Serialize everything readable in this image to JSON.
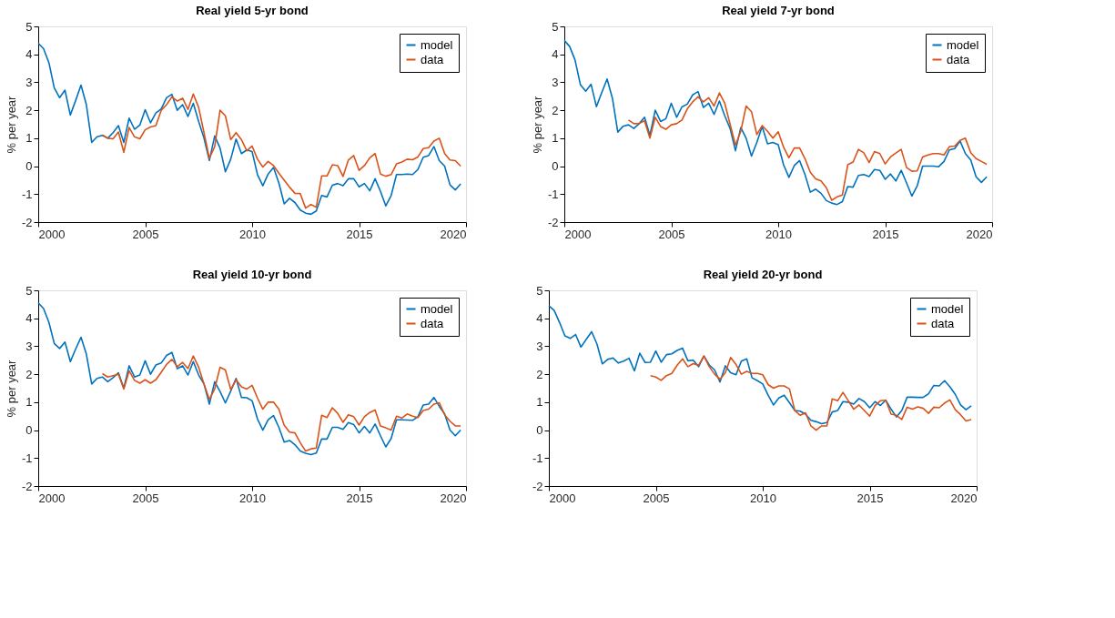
{
  "chart_data": [
    {
      "type": "line",
      "title": "Real yield 5-yr bond",
      "ylabel": "% per year",
      "xlim": [
        2000,
        2020
      ],
      "xticks": [
        2000,
        2005,
        2010,
        2015,
        2020
      ],
      "ylim": [
        -2,
        5
      ],
      "yticks": [
        -2,
        -1,
        0,
        1,
        2,
        3,
        4,
        5
      ],
      "grid": false,
      "legend": "top right",
      "x": [
        2000,
        2000.25,
        2000.5,
        2000.75,
        2001,
        2001.25,
        2001.5,
        2001.75,
        2002,
        2002.25,
        2002.5,
        2002.75,
        2003,
        2003.25,
        2003.5,
        2003.75,
        2004,
        2004.25,
        2004.5,
        2004.75,
        2005,
        2005.25,
        2005.5,
        2005.75,
        2006,
        2006.25,
        2006.5,
        2006.75,
        2007,
        2007.25,
        2007.5,
        2007.75,
        2008,
        2008.25,
        2008.5,
        2008.75,
        2009,
        2009.25,
        2009.5,
        2009.75,
        2010,
        2010.25,
        2010.5,
        2010.75,
        2011,
        2011.25,
        2011.5,
        2011.75,
        2012,
        2012.25,
        2012.5,
        2012.75,
        2013,
        2013.25,
        2013.5,
        2013.75,
        2014,
        2014.25,
        2014.5,
        2014.75,
        2015,
        2015.25,
        2015.5,
        2015.75,
        2016,
        2016.25,
        2016.5,
        2016.75,
        2017,
        2017.25,
        2017.5,
        2017.75,
        2018,
        2018.25,
        2018.5,
        2018.75,
        2019,
        2019.25,
        2019.5,
        2019.75
      ],
      "series": [
        {
          "name": "model",
          "color": "#0072bd",
          "values": [
            4.4,
            4.2,
            3.7,
            2.8,
            2.45,
            2.72,
            1.83,
            2.35,
            2.9,
            2.2,
            0.85,
            1.05,
            1.1,
            1.0,
            1.2,
            1.45,
            0.85,
            1.72,
            1.32,
            1.47,
            2.02,
            1.55,
            1.9,
            2.05,
            2.45,
            2.57,
            2.0,
            2.2,
            1.78,
            2.25,
            1.6,
            1.0,
            0.2,
            1.08,
            0.65,
            -0.2,
            0.25,
            0.97,
            0.45,
            0.58,
            0.52,
            -0.3,
            -0.7,
            -0.28,
            -0.05,
            -0.6,
            -1.35,
            -1.15,
            -1.3,
            -1.57,
            -1.68,
            -1.72,
            -1.6,
            -1.05,
            -1.1,
            -0.68,
            -0.62,
            -0.7,
            -0.45,
            -0.45,
            -0.74,
            -0.62,
            -0.88,
            -0.45,
            -0.9,
            -1.42,
            -1.05,
            -0.3,
            -0.3,
            -0.28,
            -0.3,
            -0.12,
            0.32,
            0.38,
            0.7,
            0.2,
            0.0,
            -0.67,
            -0.85,
            -0.63
          ]
        },
        {
          "name": "data",
          "color": "#d95319",
          "x": [
            2003,
            2003.25,
            2003.5,
            2003.75,
            2004,
            2004.25,
            2004.5,
            2004.75,
            2005,
            2005.25,
            2005.5,
            2005.75,
            2006,
            2006.25,
            2006.5,
            2006.75,
            2007,
            2007.25,
            2007.5,
            2007.75,
            2008,
            2008.25,
            2008.5,
            2008.75,
            2009,
            2009.25,
            2009.5,
            2009.75,
            2010,
            2010.25,
            2010.5,
            2010.75,
            2011,
            2011.25,
            2011.5,
            2011.75,
            2012,
            2012.25,
            2012.5,
            2012.75,
            2013,
            2013.25,
            2013.5,
            2013.75,
            2014,
            2014.25,
            2014.5,
            2014.75,
            2015,
            2015.25,
            2015.5,
            2015.75,
            2016,
            2016.25,
            2016.5,
            2016.75,
            2017,
            2017.25,
            2017.5,
            2017.75,
            2018,
            2018.25,
            2018.5,
            2018.75,
            2019,
            2019.25,
            2019.5,
            2019.75
          ],
          "values": [
            1.12,
            1.0,
            0.98,
            1.22,
            0.5,
            1.38,
            1.05,
            0.98,
            1.3,
            1.4,
            1.45,
            2.0,
            2.2,
            2.48,
            2.33,
            2.43,
            2.03,
            2.58,
            2.1,
            1.2,
            0.28,
            0.7,
            2.0,
            1.8,
            0.95,
            1.2,
            0.95,
            0.55,
            0.72,
            0.25,
            -0.03,
            0.17,
            0.02,
            -0.25,
            -0.5,
            -0.75,
            -0.97,
            -0.98,
            -1.5,
            -1.37,
            -1.47,
            -0.35,
            -0.35,
            0.05,
            0.02,
            -0.37,
            0.22,
            0.38,
            -0.15,
            0.02,
            0.3,
            0.45,
            -0.28,
            -0.36,
            -0.3,
            0.08,
            0.15,
            0.25,
            0.23,
            0.33,
            0.63,
            0.66,
            0.9,
            1.0,
            0.45,
            0.22,
            0.2,
            0.0
          ]
        }
      ]
    },
    {
      "type": "line",
      "title": "Real yield 7-yr bond",
      "ylabel": "% per year",
      "xlim": [
        2000,
        2020
      ],
      "xticks": [
        2000,
        2005,
        2010,
        2015,
        2020
      ],
      "ylim": [
        -2,
        5
      ],
      "yticks": [
        -2,
        -1,
        0,
        1,
        2,
        3,
        4,
        5
      ],
      "grid": false,
      "legend": "top right",
      "x": [
        2000,
        2000.25,
        2000.5,
        2000.75,
        2001,
        2001.25,
        2001.5,
        2001.75,
        2002,
        2002.25,
        2002.5,
        2002.75,
        2003,
        2003.25,
        2003.5,
        2003.75,
        2004,
        2004.25,
        2004.5,
        2004.75,
        2005,
        2005.25,
        2005.5,
        2005.75,
        2006,
        2006.25,
        2006.5,
        2006.75,
        2007,
        2007.25,
        2007.5,
        2007.75,
        2008,
        2008.25,
        2008.5,
        2008.75,
        2009,
        2009.25,
        2009.5,
        2009.75,
        2010,
        2010.25,
        2010.5,
        2010.75,
        2011,
        2011.25,
        2011.5,
        2011.75,
        2012,
        2012.25,
        2012.5,
        2012.75,
        2013,
        2013.25,
        2013.5,
        2013.75,
        2014,
        2014.25,
        2014.5,
        2014.75,
        2015,
        2015.25,
        2015.5,
        2015.75,
        2016,
        2016.25,
        2016.5,
        2016.75,
        2017,
        2017.25,
        2017.5,
        2017.75,
        2018,
        2018.25,
        2018.5,
        2018.75,
        2019,
        2019.25,
        2019.5,
        2019.75
      ],
      "series": [
        {
          "name": "model",
          "color": "#0072bd",
          "values": [
            4.5,
            4.28,
            3.8,
            2.92,
            2.68,
            2.93,
            2.13,
            2.63,
            3.12,
            2.42,
            1.22,
            1.43,
            1.48,
            1.35,
            1.52,
            1.75,
            1.1,
            2.0,
            1.6,
            1.7,
            2.25,
            1.75,
            2.12,
            2.22,
            2.55,
            2.67,
            2.1,
            2.25,
            1.85,
            2.33,
            1.8,
            1.35,
            0.55,
            1.38,
            1.0,
            0.36,
            0.85,
            1.42,
            0.8,
            0.85,
            0.77,
            0.05,
            -0.4,
            0.02,
            0.2,
            -0.3,
            -0.93,
            -0.82,
            -0.97,
            -1.23,
            -1.32,
            -1.37,
            -1.27,
            -0.73,
            -0.75,
            -0.33,
            -0.3,
            -0.37,
            -0.12,
            -0.15,
            -0.47,
            -0.28,
            -0.53,
            -0.15,
            -0.6,
            -1.07,
            -0.7,
            0.0,
            0.0,
            0.0,
            -0.02,
            0.17,
            0.58,
            0.63,
            0.9,
            0.45,
            0.22,
            -0.38,
            -0.58,
            -0.38
          ]
        },
        {
          "name": "data",
          "color": "#d95319",
          "x": [
            2003,
            2003.25,
            2003.5,
            2003.75,
            2004,
            2004.25,
            2004.5,
            2004.75,
            2005,
            2005.25,
            2005.5,
            2005.75,
            2006,
            2006.25,
            2006.5,
            2006.75,
            2007,
            2007.25,
            2007.5,
            2007.75,
            2008,
            2008.25,
            2008.5,
            2008.75,
            2009,
            2009.25,
            2009.5,
            2009.75,
            2010,
            2010.25,
            2010.5,
            2010.75,
            2011,
            2011.25,
            2011.5,
            2011.75,
            2012,
            2012.25,
            2012.5,
            2012.75,
            2013,
            2013.25,
            2013.5,
            2013.75,
            2014,
            2014.25,
            2014.5,
            2014.75,
            2015,
            2015.25,
            2015.5,
            2015.75,
            2016,
            2016.25,
            2016.5,
            2016.75,
            2017,
            2017.25,
            2017.5,
            2017.75,
            2018,
            2018.25,
            2018.5,
            2018.75,
            2019,
            2019.25,
            2019.5,
            2019.75
          ],
          "values": [
            1.65,
            1.52,
            1.53,
            1.62,
            1.0,
            1.75,
            1.42,
            1.32,
            1.48,
            1.52,
            1.65,
            2.05,
            2.3,
            2.48,
            2.3,
            2.45,
            2.15,
            2.62,
            2.25,
            1.5,
            0.75,
            1.25,
            2.15,
            1.95,
            1.13,
            1.45,
            1.25,
            1.0,
            1.23,
            0.68,
            0.3,
            0.65,
            0.65,
            0.27,
            -0.22,
            -0.45,
            -0.53,
            -0.77,
            -1.22,
            -1.1,
            -1.03,
            0.05,
            0.15,
            0.6,
            0.48,
            0.13,
            0.52,
            0.45,
            0.08,
            0.33,
            0.47,
            0.6,
            -0.05,
            -0.18,
            -0.17,
            0.33,
            0.4,
            0.45,
            0.45,
            0.4,
            0.7,
            0.72,
            0.92,
            1.0,
            0.48,
            0.27,
            0.17,
            0.07
          ]
        }
      ]
    },
    {
      "type": "line",
      "title": "Real yield 10-yr bond",
      "ylabel": "% per year",
      "xlim": [
        2000,
        2020
      ],
      "xticks": [
        2000,
        2005,
        2010,
        2015,
        2020
      ],
      "ylim": [
        -2,
        5
      ],
      "yticks": [
        -2,
        -1,
        0,
        1,
        2,
        3,
        4,
        5
      ],
      "grid": false,
      "legend": "top right",
      "x": [
        2000,
        2000.25,
        2000.5,
        2000.75,
        2001,
        2001.25,
        2001.5,
        2001.75,
        2002,
        2002.25,
        2002.5,
        2002.75,
        2003,
        2003.25,
        2003.5,
        2003.75,
        2004,
        2004.25,
        2004.5,
        2004.75,
        2005,
        2005.25,
        2005.5,
        2005.75,
        2006,
        2006.25,
        2006.5,
        2006.75,
        2007,
        2007.25,
        2007.5,
        2007.75,
        2008,
        2008.25,
        2008.5,
        2008.75,
        2009,
        2009.25,
        2009.5,
        2009.75,
        2010,
        2010.25,
        2010.5,
        2010.75,
        2011,
        2011.25,
        2011.5,
        2011.75,
        2012,
        2012.25,
        2012.5,
        2012.75,
        2013,
        2013.25,
        2013.5,
        2013.75,
        2014,
        2014.25,
        2014.5,
        2014.75,
        2015,
        2015.25,
        2015.5,
        2015.75,
        2016,
        2016.25,
        2016.5,
        2016.75,
        2017,
        2017.25,
        2017.5,
        2017.75,
        2018,
        2018.25,
        2018.5,
        2018.75,
        2019,
        2019.25,
        2019.5,
        2019.75
      ],
      "series": [
        {
          "name": "model",
          "color": "#0072bd",
          "values": [
            4.55,
            4.35,
            3.85,
            3.1,
            2.92,
            3.15,
            2.45,
            2.9,
            3.32,
            2.72,
            1.65,
            1.85,
            1.9,
            1.73,
            1.88,
            2.05,
            1.5,
            2.3,
            1.9,
            1.97,
            2.48,
            2.0,
            2.33,
            2.4,
            2.67,
            2.78,
            2.2,
            2.3,
            1.97,
            2.45,
            1.97,
            1.65,
            0.93,
            1.73,
            1.38,
            0.97,
            1.4,
            1.85,
            1.17,
            1.16,
            1.05,
            0.4,
            0.0,
            0.37,
            0.52,
            0.1,
            -0.43,
            -0.37,
            -0.52,
            -0.75,
            -0.83,
            -0.88,
            -0.82,
            -0.32,
            -0.32,
            0.1,
            0.1,
            0.03,
            0.27,
            0.2,
            -0.1,
            0.13,
            -0.1,
            0.22,
            -0.2,
            -0.6,
            -0.3,
            0.37,
            0.37,
            0.36,
            0.35,
            0.48,
            0.9,
            0.93,
            1.17,
            0.85,
            0.58,
            0.0,
            -0.2,
            0.0
          ]
        },
        {
          "name": "data",
          "color": "#d95319",
          "x": [
            2003,
            2003.25,
            2003.5,
            2003.75,
            2004,
            2004.25,
            2004.5,
            2004.75,
            2005,
            2005.25,
            2005.5,
            2005.75,
            2006,
            2006.25,
            2006.5,
            2006.75,
            2007,
            2007.25,
            2007.5,
            2007.75,
            2008,
            2008.25,
            2008.5,
            2008.75,
            2009,
            2009.25,
            2009.5,
            2009.75,
            2010,
            2010.25,
            2010.5,
            2010.75,
            2011,
            2011.25,
            2011.5,
            2011.75,
            2012,
            2012.25,
            2012.5,
            2012.75,
            2013,
            2013.25,
            2013.5,
            2013.75,
            2014,
            2014.25,
            2014.5,
            2014.75,
            2015,
            2015.25,
            2015.5,
            2015.75,
            2016,
            2016.25,
            2016.5,
            2016.75,
            2017,
            2017.25,
            2017.5,
            2017.75,
            2018,
            2018.25,
            2018.5,
            2018.75,
            2019,
            2019.25,
            2019.5,
            2019.75
          ],
          "values": [
            2.02,
            1.9,
            1.95,
            2.0,
            1.47,
            2.12,
            1.78,
            1.68,
            1.8,
            1.68,
            1.8,
            2.07,
            2.35,
            2.53,
            2.27,
            2.42,
            2.2,
            2.65,
            2.25,
            1.65,
            1.1,
            1.47,
            2.25,
            2.15,
            1.45,
            1.8,
            1.55,
            1.47,
            1.6,
            1.15,
            0.75,
            1.0,
            1.0,
            0.75,
            0.17,
            -0.07,
            -0.1,
            -0.45,
            -0.75,
            -0.67,
            -0.64,
            0.53,
            0.45,
            0.8,
            0.6,
            0.28,
            0.55,
            0.48,
            0.18,
            0.48,
            0.63,
            0.72,
            0.15,
            0.08,
            0.0,
            0.5,
            0.43,
            0.58,
            0.5,
            0.45,
            0.7,
            0.75,
            0.93,
            0.98,
            0.55,
            0.32,
            0.15,
            0.15
          ]
        }
      ]
    },
    {
      "type": "line",
      "title": "Real yield 20-yr bond",
      "xlim": [
        2000,
        2020
      ],
      "xticks": [
        2000,
        2005,
        2010,
        2015,
        2020
      ],
      "ylim": [
        -2,
        5
      ],
      "yticks": [
        -2,
        -1,
        0,
        1,
        2,
        3,
        4,
        5
      ],
      "grid": false,
      "legend": "top right",
      "x": [
        2000,
        2000.25,
        2000.5,
        2000.75,
        2001,
        2001.25,
        2001.5,
        2001.75,
        2002,
        2002.25,
        2002.5,
        2002.75,
        2003,
        2003.25,
        2003.5,
        2003.75,
        2004,
        2004.25,
        2004.5,
        2004.75,
        2005,
        2005.25,
        2005.5,
        2005.75,
        2006,
        2006.25,
        2006.5,
        2006.75,
        2007,
        2007.25,
        2007.5,
        2007.75,
        2008,
        2008.25,
        2008.5,
        2008.75,
        2009,
        2009.25,
        2009.5,
        2009.75,
        2010,
        2010.25,
        2010.5,
        2010.75,
        2011,
        2011.25,
        2011.5,
        2011.75,
        2012,
        2012.25,
        2012.5,
        2012.75,
        2013,
        2013.25,
        2013.5,
        2013.75,
        2014,
        2014.25,
        2014.5,
        2014.75,
        2015,
        2015.25,
        2015.5,
        2015.75,
        2016,
        2016.25,
        2016.5,
        2016.75,
        2017,
        2017.25,
        2017.5,
        2017.75,
        2018,
        2018.25,
        2018.5,
        2018.75,
        2019,
        2019.25,
        2019.5,
        2019.75
      ],
      "series": [
        {
          "name": "model",
          "color": "#0072bd",
          "values": [
            4.45,
            4.28,
            3.85,
            3.37,
            3.28,
            3.42,
            2.97,
            3.25,
            3.52,
            3.08,
            2.37,
            2.53,
            2.58,
            2.4,
            2.47,
            2.57,
            2.12,
            2.75,
            2.42,
            2.43,
            2.83,
            2.43,
            2.7,
            2.73,
            2.85,
            2.93,
            2.48,
            2.5,
            2.27,
            2.65,
            2.33,
            2.15,
            1.72,
            2.3,
            2.05,
            1.98,
            2.47,
            2.55,
            1.87,
            1.77,
            1.65,
            1.25,
            0.9,
            1.15,
            1.25,
            0.98,
            0.7,
            0.68,
            0.57,
            0.35,
            0.3,
            0.23,
            0.27,
            0.65,
            0.7,
            1.02,
            1.0,
            0.93,
            1.13,
            1.02,
            0.8,
            1.02,
            0.88,
            1.07,
            0.75,
            0.47,
            0.7,
            1.18,
            1.18,
            1.17,
            1.17,
            1.3,
            1.6,
            1.58,
            1.77,
            1.55,
            1.28,
            0.9,
            0.73,
            0.87
          ]
        },
        {
          "name": "data",
          "color": "#d95319",
          "x": [
            2004.75,
            2005,
            2005.25,
            2005.5,
            2005.75,
            2006,
            2006.25,
            2006.5,
            2006.75,
            2007,
            2007.25,
            2007.5,
            2007.75,
            2008,
            2008.25,
            2008.5,
            2008.75,
            2009,
            2009.25,
            2009.5,
            2009.75,
            2010,
            2010.25,
            2010.5,
            2010.75,
            2011,
            2011.25,
            2011.5,
            2011.75,
            2012,
            2012.25,
            2012.5,
            2012.75,
            2013,
            2013.25,
            2013.5,
            2013.75,
            2014,
            2014.25,
            2014.5,
            2014.75,
            2015,
            2015.25,
            2015.5,
            2015.75,
            2016,
            2016.25,
            2016.5,
            2016.75,
            2017,
            2017.25,
            2017.5,
            2017.75,
            2018,
            2018.25,
            2018.5,
            2018.75,
            2019,
            2019.25,
            2019.5,
            2019.75
          ],
          "values": [
            1.95,
            1.9,
            1.78,
            1.95,
            2.03,
            2.32,
            2.55,
            2.27,
            2.38,
            2.32,
            2.65,
            2.27,
            2.0,
            1.82,
            2.05,
            2.6,
            2.35,
            2.0,
            2.1,
            2.03,
            2.03,
            1.98,
            1.63,
            1.5,
            1.58,
            1.58,
            1.47,
            0.7,
            0.53,
            0.62,
            0.15,
            0.0,
            0.15,
            0.15,
            1.12,
            1.05,
            1.35,
            1.05,
            0.75,
            0.9,
            0.7,
            0.5,
            0.88,
            1.05,
            1.07,
            0.57,
            0.53,
            0.38,
            0.82,
            0.75,
            0.83,
            0.78,
            0.6,
            0.82,
            0.8,
            0.97,
            1.08,
            0.73,
            0.55,
            0.33,
            0.38
          ]
        }
      ]
    }
  ]
}
